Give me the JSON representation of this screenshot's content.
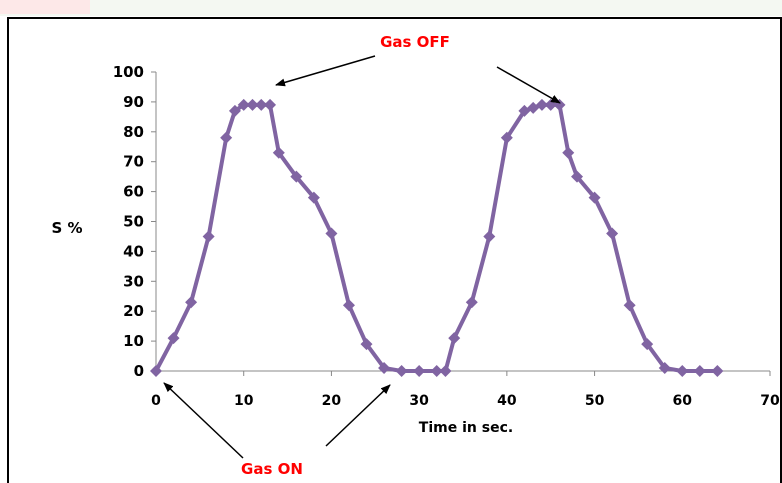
{
  "chart_data": {
    "type": "line",
    "title": "",
    "xlabel": "Time in sec.",
    "ylabel": "S %",
    "xlim": [
      0,
      70
    ],
    "ylim": [
      0,
      100
    ],
    "x_ticks": [
      0,
      10,
      20,
      30,
      40,
      50,
      60,
      70
    ],
    "y_ticks": [
      0,
      10,
      20,
      30,
      40,
      50,
      60,
      70,
      80,
      90,
      100
    ],
    "grid": false,
    "legend": "none",
    "series": [
      {
        "color": "#8064a2",
        "marker": "diamond",
        "points": [
          [
            0,
            0
          ],
          [
            2,
            11
          ],
          [
            4,
            23
          ],
          [
            6,
            45
          ],
          [
            8,
            78
          ],
          [
            9,
            87
          ],
          [
            10,
            89
          ],
          [
            11,
            89
          ],
          [
            12,
            89
          ],
          [
            13,
            89
          ],
          [
            14,
            73
          ],
          [
            16,
            65
          ],
          [
            18,
            58
          ],
          [
            20,
            46
          ],
          [
            22,
            22
          ],
          [
            24,
            9
          ],
          [
            26,
            1
          ],
          [
            28,
            0
          ],
          [
            30,
            0
          ],
          [
            32,
            0
          ],
          [
            33,
            0
          ],
          [
            34,
            11
          ],
          [
            36,
            23
          ],
          [
            38,
            45
          ],
          [
            40,
            78
          ],
          [
            42,
            87
          ],
          [
            43,
            88
          ],
          [
            44,
            89
          ],
          [
            45,
            89
          ],
          [
            46,
            89
          ],
          [
            47,
            73
          ],
          [
            48,
            65
          ],
          [
            50,
            58
          ],
          [
            52,
            46
          ],
          [
            54,
            22
          ],
          [
            56,
            9
          ],
          [
            58,
            1
          ],
          [
            60,
            0
          ],
          [
            62,
            0
          ],
          [
            64,
            0
          ]
        ]
      }
    ],
    "annotations": [
      {
        "text": "Gas OFF",
        "color": "#ff0000"
      },
      {
        "text": "Gas ON",
        "color": "#ff0000"
      }
    ]
  }
}
